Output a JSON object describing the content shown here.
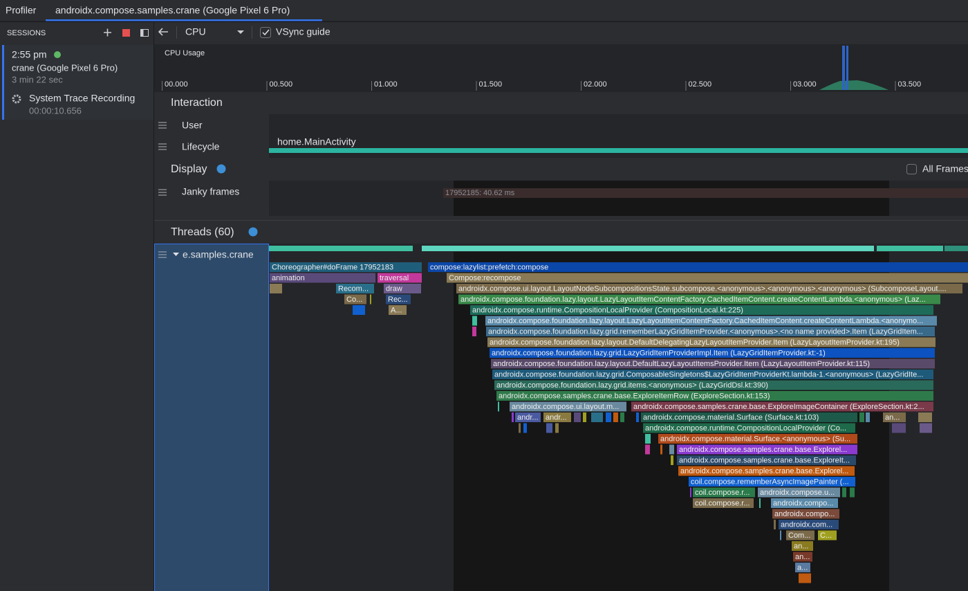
{
  "tabs": [
    "Profiler",
    "androidx.compose.samples.crane (Google Pixel 6 Pro)"
  ],
  "sessions": {
    "header": "SESSIONS",
    "time": "2:55 pm",
    "device": "crane (Google Pixel 6 Pro)",
    "duration": "3 min 22 sec",
    "recording": "System Trace Recording",
    "recording_time": "00:00:10.656"
  },
  "toolbar": {
    "profiler": "CPU",
    "vsync": "VSync guide"
  },
  "cpu_usage": {
    "label": "CPU Usage",
    "ticks": [
      "00.000",
      "00.500",
      "01.000",
      "01.500",
      "02.000",
      "02.500",
      "03.000",
      "03.500"
    ]
  },
  "interaction": {
    "title": "Interaction",
    "tracks": [
      "User",
      "Lifecycle"
    ],
    "lifecycle_event": "home.MainActivity"
  },
  "display": {
    "title": "Display",
    "all_frames": "All Frames",
    "track": "Janky frames",
    "frame": "17952185: 40.62 ms"
  },
  "threads": {
    "title": "Threads (60)",
    "thread": "e.samples.crane",
    "slices": [
      "Choreographer#doFrame 17952183",
      "compose:lazylist:prefetch:compose",
      "animation",
      "traversal",
      "Compose:recompose",
      "Recom...",
      "draw",
      "androidx.compose.ui.layout.LayoutNodeSubcompositionsState.subcompose.<anonymous>.<anonymous>.<anonymous> (SubcomposeLayout....",
      "Co...",
      "Rec...",
      "androidx.compose.foundation.lazy.layout.LazyLayoutItemContentFactory.CachedItemContent.createContentLambda.<anonymous> (Laz...",
      "A...",
      "androidx.compose.runtime.CompositionLocalProvider (CompositionLocal.kt:225)",
      "androidx.compose.foundation.lazy.layout.LazyLayoutItemContentFactory.CachedItemContent.createContentLambda.<anonymo...",
      "androidx.compose.foundation.lazy.grid.rememberLazyGridItemProvider.<anonymous>.<no name provided>.Item (LazyGridItem...",
      "androidx.compose.foundation.lazy.layout.DefaultDelegatingLazyLayoutItemProvider.Item (LazyLayoutItemProvider.kt:195)",
      "androidx.compose.foundation.lazy.grid.LazyGridItemProviderImpl.Item (LazyGridItemProvider.kt:-1)",
      "androidx.compose.foundation.lazy.layout.DefaultLazyLayoutItemsProvider.Item (LazyLayoutItemProvider.kt:115)",
      "androidx.compose.foundation.lazy.grid.ComposableSingletons$LazyGridItemProviderKt.lambda-1.<anonymous> (LazyGridIte...",
      "androidx.compose.foundation.lazy.grid.items.<anonymous> (LazyGridDsl.kt:390)",
      "androidx.compose.samples.crane.base.ExploreItemRow (ExploreSection.kt:153)",
      "androidx.compose.ui.layout.m...",
      "androidx.compose.samples.crane.base.ExploreImageContainer (ExploreSection.kt:2...",
      "andr...",
      "andr...",
      "androidx.compose.material.Surface (Surface.kt:103)",
      "an...",
      "androidx.compose.runtime.CompositionLocalProvider (Co...",
      "androidx.compose.material.Surface.<anonymous> (Su...",
      "androidx.compose.samples.crane.base.Explorel...",
      "androidx.compose.samples.crane.base.ExploreIt...",
      "androidx.compose.samples.crane.base.Explorel...",
      "coil.compose.rememberAsyncImagePainter (...",
      "coil.compose.r...",
      "androidx.compose.u...",
      "coil.compose.r...",
      "androidx.compo...",
      "androidx.compo...",
      "androidx.com...",
      "Com...",
      "C...",
      "an...",
      "an...",
      "a..."
    ]
  }
}
